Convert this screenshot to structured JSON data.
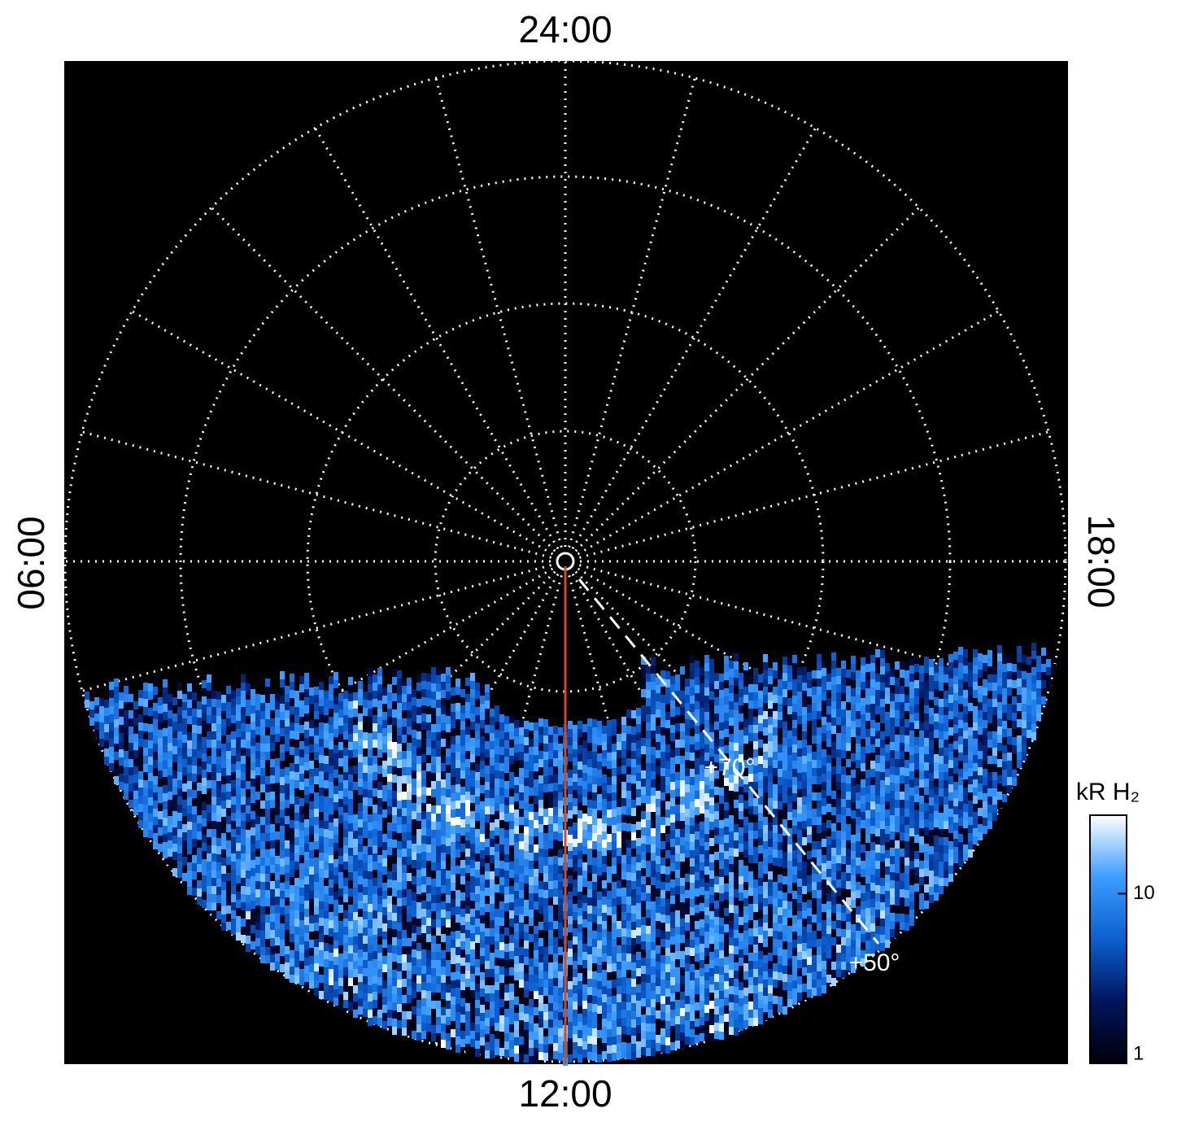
{
  "chart_data": {
    "type": "polar-map",
    "local_time_labels": {
      "top": "24:00",
      "bottom": "12:00",
      "left": "06:00",
      "right": "18:00"
    },
    "latitude_labels": [
      "+70°",
      "+50°"
    ],
    "colorbar": {
      "title": "kR H₂",
      "clim": [
        1,
        29
      ],
      "cticks": [
        1,
        10
      ],
      "log": true,
      "colors": [
        "#000008",
        "#00155e",
        "#0c5fd0",
        "#3a9dff",
        "#ffffff"
      ]
    },
    "meridian_color": "#d84a1a"
  }
}
